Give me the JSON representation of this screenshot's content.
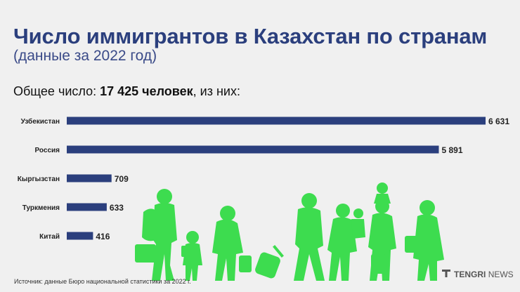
{
  "header": {
    "title": "Число иммигрантов в Казахстан по странам",
    "subtitle": "(данные за 2022 год)"
  },
  "summary": {
    "prefix": "Общее число: ",
    "total": "17 425 человек",
    "suffix": ", из них:"
  },
  "chart_data": {
    "type": "bar",
    "orientation": "horizontal",
    "categories": [
      "Узбекистан",
      "Россия",
      "Кыргызстан",
      "Туркмения",
      "Китай"
    ],
    "values": [
      6631,
      5891,
      709,
      633,
      416
    ],
    "value_labels": [
      "6 631",
      "5 891",
      "709",
      "633",
      "416"
    ],
    "bar_color": "#2b3f7d",
    "xlim": [
      0,
      6631
    ],
    "grid": false,
    "legend": "none"
  },
  "footer": {
    "source": "Источник: данные Бюро национальной статистики за 2022 г.",
    "brand_bold": "TENGRI",
    "brand_rest": "NEWS"
  },
  "colors": {
    "illustration": "#3ddc4f",
    "title": "#2b3f7d",
    "background": "#f0f0f0"
  },
  "illustration": {
    "icon": "migrants-silhouettes-illustration"
  }
}
